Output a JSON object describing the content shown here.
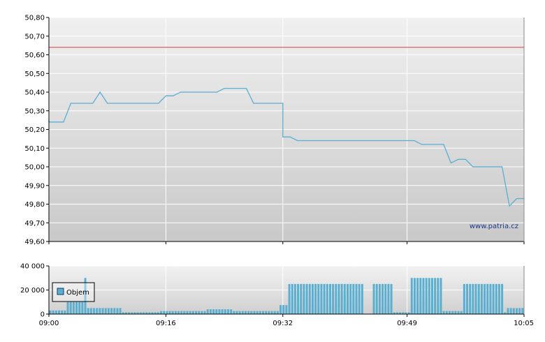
{
  "chart_data": [
    {
      "type": "line",
      "title": "",
      "xlabel": "",
      "ylabel": "",
      "ylim": [
        49.6,
        50.8
      ],
      "y_ticks": [
        "50,80",
        "50,70",
        "50,60",
        "50,50",
        "50,40",
        "50,30",
        "50,20",
        "50,10",
        "50,00",
        "49,90",
        "49,80",
        "49,70",
        "49,60"
      ],
      "grid": true,
      "reference_line": {
        "value": 50.64,
        "color": "#e05050"
      },
      "watermark": "www.patria.cz",
      "series": [
        {
          "color": "#5aaed2",
          "points": [
            [
              "09:00",
              50.25
            ],
            [
              "09:00",
              50.24
            ],
            [
              "09:02",
              50.24
            ],
            [
              "09:03",
              50.34
            ],
            [
              "09:05",
              50.34
            ],
            [
              "09:06",
              50.34
            ],
            [
              "09:07",
              50.4
            ],
            [
              "09:08",
              50.34
            ],
            [
              "09:15",
              50.34
            ],
            [
              "09:16",
              50.38
            ],
            [
              "09:17",
              50.38
            ],
            [
              "09:18",
              50.4
            ],
            [
              "09:23",
              50.4
            ],
            [
              "09:24",
              50.42
            ],
            [
              "09:27",
              50.42
            ],
            [
              "09:28",
              50.34
            ],
            [
              "09:32",
              50.34
            ],
            [
              "09:32",
              50.16
            ],
            [
              "09:33",
              50.16
            ],
            [
              "09:34",
              50.14
            ],
            [
              "09:50",
              50.14
            ],
            [
              "09:51",
              50.12
            ],
            [
              "09:54",
              50.12
            ],
            [
              "09:55",
              50.02
            ],
            [
              "09:56",
              50.04
            ],
            [
              "09:57",
              50.04
            ],
            [
              "09:58",
              50.0
            ],
            [
              "10:02",
              50.0
            ],
            [
              "10:03",
              49.79
            ],
            [
              "10:04",
              49.83
            ],
            [
              "10:05",
              49.83
            ]
          ]
        }
      ]
    },
    {
      "type": "bar",
      "title": "",
      "xlabel": "",
      "ylabel": "",
      "ylim": [
        0,
        40000
      ],
      "y_ticks": [
        "40 000",
        "20 000",
        "0"
      ],
      "x_ticks": [
        "09:00",
        "09:16",
        "09:32",
        "09:49",
        "10:05"
      ],
      "grid": true,
      "legend": {
        "position": "left",
        "label": "Objem"
      },
      "color": "#5aaed2",
      "x_start": "09:00",
      "x_end": "10:05",
      "values": [
        3000,
        3000,
        3000,
        3000,
        3000,
        3000,
        10000,
        10000,
        10000,
        10000,
        10000,
        10000,
        30000,
        5000,
        5000,
        5000,
        5000,
        5000,
        5000,
        5000,
        5000,
        5000,
        5000,
        5000,
        5000,
        1500,
        1500,
        1500,
        1500,
        1500,
        1500,
        1500,
        1500,
        1500,
        1500,
        1500,
        1500,
        1500,
        2500,
        2500,
        2500,
        2500,
        2500,
        2500,
        2500,
        2500,
        2500,
        2500,
        2500,
        2500,
        2500,
        2500,
        2500,
        2500,
        4000,
        4000,
        4000,
        4000,
        4000,
        4000,
        4000,
        4000,
        4000,
        2500,
        2500,
        2500,
        2500,
        2500,
        2500,
        2500,
        2500,
        2500,
        2500,
        2500,
        2500,
        2500,
        2500,
        2500,
        2500,
        7500,
        7500,
        7500,
        25000,
        25000,
        25000,
        25000,
        25000,
        25000,
        25000,
        25000,
        25000,
        25000,
        25000,
        25000,
        25000,
        25000,
        25000,
        25000,
        25000,
        25000,
        25000,
        25000,
        25000,
        25000,
        25000,
        25000,
        25000,
        25000,
        0,
        0,
        0,
        25000,
        25000,
        25000,
        25000,
        25000,
        25000,
        25000,
        1500,
        1500,
        1500,
        1500,
        1500,
        1500,
        30000,
        30000,
        30000,
        30000,
        30000,
        30000,
        30000,
        30000,
        30000,
        30000,
        30000,
        2500,
        2500,
        2500,
        2500,
        2500,
        2500,
        2500,
        25000,
        25000,
        25000,
        25000,
        25000,
        25000,
        25000,
        25000,
        25000,
        25000,
        25000,
        25000,
        25000,
        25000,
        1500,
        5000,
        5000,
        5000,
        5000,
        5000,
        5000
      ]
    }
  ]
}
